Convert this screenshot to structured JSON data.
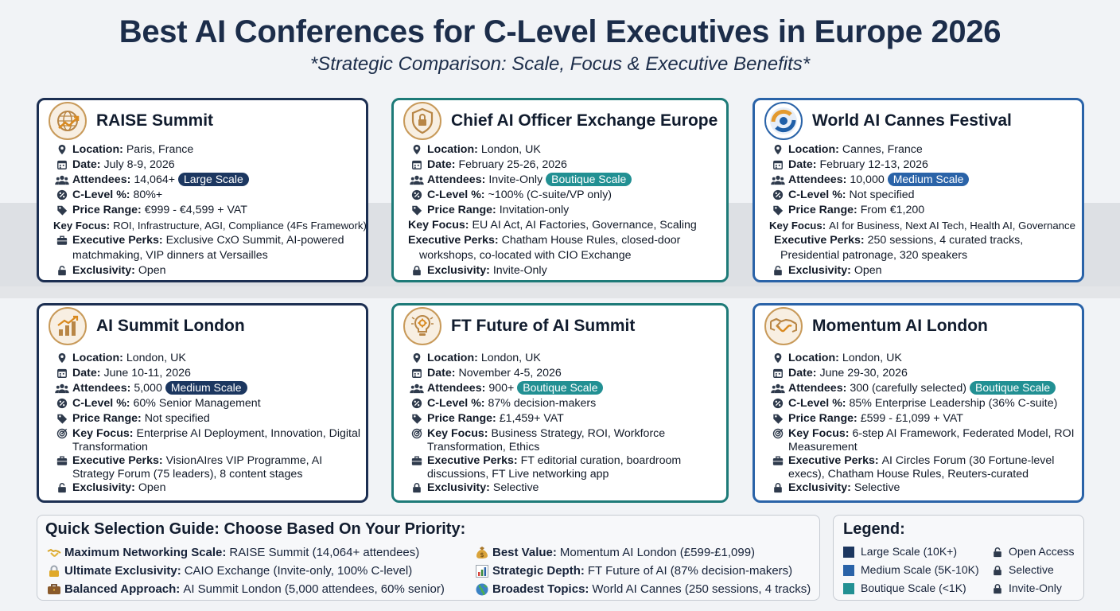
{
  "title": "Best AI Conferences for C-Level Executives in Europe 2026",
  "subtitle": "*Strategic Comparison: Scale, Focus & Executive Benefits*",
  "colors": {
    "navy": "#1c2f52",
    "medium_blue": "#2a63a8",
    "teal": "#229093",
    "gold": "#c89a5a"
  },
  "labels": {
    "location": "Location:",
    "date": "Date:",
    "attendees": "Attendees:",
    "clevel": "C-Level %:",
    "price": "Price Range:",
    "focus": "Key Focus:",
    "perks": "Executive Perks:",
    "exclusivity": "Exclusivity:"
  },
  "conferences": [
    {
      "name": "RAISE Summit",
      "icon": "globe-chart-icon",
      "location": "Paris, France",
      "date": "July 8-9, 2026",
      "attendees": "14,064+",
      "scale": "Large Scale",
      "clevel": "80%+",
      "price": "€999 - €4,599 + VAT",
      "focus": "ROI, Infrastructure, AGI, Compliance (4Fs Framework)",
      "perks_1": "Exclusive CxO Summit, AI-powered",
      "perks_2": "matchmaking, VIP dinners at Versailles",
      "exclusivity": "Open"
    },
    {
      "name": "Chief AI Officer Exchange Europe",
      "icon": "shield-lock-icon",
      "location": "London, UK",
      "date": "February 25-26, 2026",
      "attendees": "Invite-Only",
      "scale": "Boutique Scale",
      "clevel": "~100% (C-suite/VP only)",
      "price": "Invitation-only",
      "focus": "EU AI Act, AI Factories, Governance, Scaling",
      "perks_1": "Chatham House Rules, closed-door",
      "perks_2": "workshops, co-located with CIO Exchange",
      "exclusivity": "Invite-Only"
    },
    {
      "name": "World AI Cannes Festival",
      "icon": "swirl-logo-icon",
      "location": "Cannes, France",
      "date": "February 12-13, 2026",
      "attendees": "10,000",
      "scale": "Medium Scale",
      "clevel": "Not specified",
      "price": "From €1,200",
      "focus": "AI for Business, Next AI Tech, Health AI, Governance",
      "perks_1": "250 sessions, 4 curated tracks,",
      "perks_2": "Presidential patronage, 320 speakers",
      "exclusivity": "Open"
    },
    {
      "name": "AI Summit London",
      "icon": "growth-chart-icon",
      "location": "London, UK",
      "date": "June 10-11, 2026",
      "attendees": "5,000",
      "scale": "Medium Scale",
      "clevel": "60% Senior Management",
      "price": "Not specified",
      "focus_1": "Enterprise AI Deployment, Innovation, Digital",
      "focus_2": "Transformation",
      "perks_1": "VisionAIres VIP Programme, AI",
      "perks_2": "Strategy Forum (75 leaders), 8 content stages",
      "exclusivity": "Open"
    },
    {
      "name": "FT Future of AI Summit",
      "icon": "lightbulb-gear-icon",
      "location": "London, UK",
      "date": "November 4-5, 2026",
      "attendees": "900+",
      "scale": "Boutique Scale",
      "clevel": "87% decision-makers",
      "price": "£1,459+ VAT",
      "focus_1": "Business Strategy, ROI, Workforce",
      "focus_2": "Transformation, Ethics",
      "perks_1": "FT editorial curation, boardroom",
      "perks_2": "discussions, FT Live networking app",
      "exclusivity": "Selective"
    },
    {
      "name": "Momentum AI London",
      "icon": "handshake-icon",
      "location": "London, UK",
      "date": "June 29-30, 2026",
      "attendees": "300 (carefully selected)",
      "scale": "Boutique Scale",
      "clevel": "85% Enterprise Leadership (36% C-suite)",
      "price": "£599 - £1,099 + VAT",
      "focus_1": "6-step AI Framework, Federated Model, ROI",
      "focus_2": "Measurement",
      "perks_1": "AI Circles Forum (30 Fortune-level",
      "perks_2": "execs), Chatham House Rules, Reuters-curated",
      "exclusivity": "Selective"
    }
  ],
  "guide": {
    "title": "Quick Selection Guide: Choose Based On Your Priority:",
    "items": [
      {
        "icon": "handshake-emoji-icon",
        "label": "Maximum Networking Scale:",
        "value": "RAISE Summit (14,064+ attendees)"
      },
      {
        "icon": "lock-emoji-icon",
        "label": "Ultimate Exclusivity:",
        "value": "CAIO Exchange (Invite-only, 100% C-level)"
      },
      {
        "icon": "briefcase-emoji-icon",
        "label": "Balanced Approach:",
        "value": "AI Summit London (5,000 attendees, 60% senior)"
      },
      {
        "icon": "money-bag-emoji-icon",
        "label": "Best Value:",
        "value": "Momentum AI London (£599-£1,099)"
      },
      {
        "icon": "bar-chart-emoji-icon",
        "label": "Strategic Depth:",
        "value": "FT Future of AI (87% decision-makers)"
      },
      {
        "icon": "globe-emoji-icon",
        "label": "Broadest Topics:",
        "value": "World AI Cannes (250 sessions, 4 tracks)"
      }
    ]
  },
  "legend": {
    "title": "Legend:",
    "scales": [
      {
        "label": "Large Scale (10K+)",
        "color": "#1c3760"
      },
      {
        "label": "Medium Scale (5K-10K)",
        "color": "#2a63a8"
      },
      {
        "label": "Boutique Scale (<1K)",
        "color": "#229093"
      }
    ],
    "access": [
      {
        "label": "Open Access",
        "icon": "open-lock-icon"
      },
      {
        "label": "Selective",
        "icon": "lock-icon"
      },
      {
        "label": "Invite-Only",
        "icon": "closed-lock-icon"
      }
    ]
  }
}
